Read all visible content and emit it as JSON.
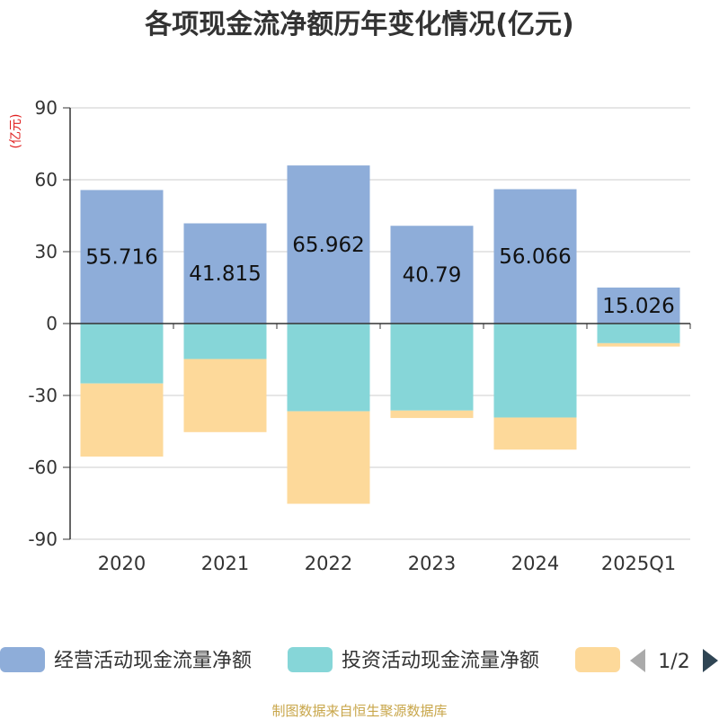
{
  "chart_data": {
    "type": "bar",
    "stacked": true,
    "title": "各项现金流净额历年变化情况(亿元)",
    "ylabel": "(亿元)",
    "categories": [
      "2020",
      "2021",
      "2022",
      "2023",
      "2024",
      "2025Q1"
    ],
    "ylim": [
      -90,
      90
    ],
    "yticks": [
      90,
      60,
      30,
      0,
      -30,
      -60,
      -90
    ],
    "grid": true,
    "series": [
      {
        "name": "经营活动现金流量净额",
        "color": "#8eadd9",
        "values": [
          55.716,
          41.815,
          65.962,
          40.79,
          56.066,
          15.026
        ],
        "labels": [
          "55.716",
          "41.815",
          "65.962",
          "40.79",
          "56.066",
          "15.026"
        ]
      },
      {
        "name": "投资活动现金流量净额",
        "color": "#86d6d8",
        "values": [
          -25.0,
          -14.8,
          -36.6,
          -36.3,
          -39.2,
          -8.2
        ]
      },
      {
        "name": "",
        "color": "#fdd99a",
        "values": [
          -30.5,
          -30.5,
          -38.6,
          -3.1,
          -13.4,
          -1.4
        ]
      }
    ],
    "legend": {
      "position": "bottom",
      "page": "1/2"
    },
    "source": "制图数据来自恒生聚源数据库"
  }
}
